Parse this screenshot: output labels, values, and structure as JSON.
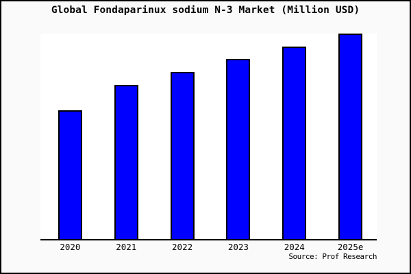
{
  "window": {
    "background_color": "#fafafa",
    "plot_background_color": "#ffffff",
    "frame_color": "#000000"
  },
  "header": {
    "title": "Global Fondaparinux sodium N-3 Market (Million USD)"
  },
  "footer": {
    "source_label": "Source: Prof Research"
  },
  "chart_data": {
    "type": "bar",
    "title": "Global Fondaparinux sodium N-3 Market (Million USD)",
    "categories": [
      "2020",
      "2021",
      "2022",
      "2023",
      "2024",
      "2025e"
    ],
    "values": [
      188,
      225,
      244,
      263,
      281,
      300
    ],
    "value_note": "no y-axis ticks or data labels shown in chart; values are relative bar heights measured in pixels",
    "ylim": [
      0,
      300
    ],
    "xlabel": "",
    "ylabel": "",
    "grid": false,
    "legend": false,
    "bar_color": "#0000ff",
    "bar_border_color": "#000000",
    "axis_color": "#000000",
    "source": "Source: Prof Research"
  }
}
